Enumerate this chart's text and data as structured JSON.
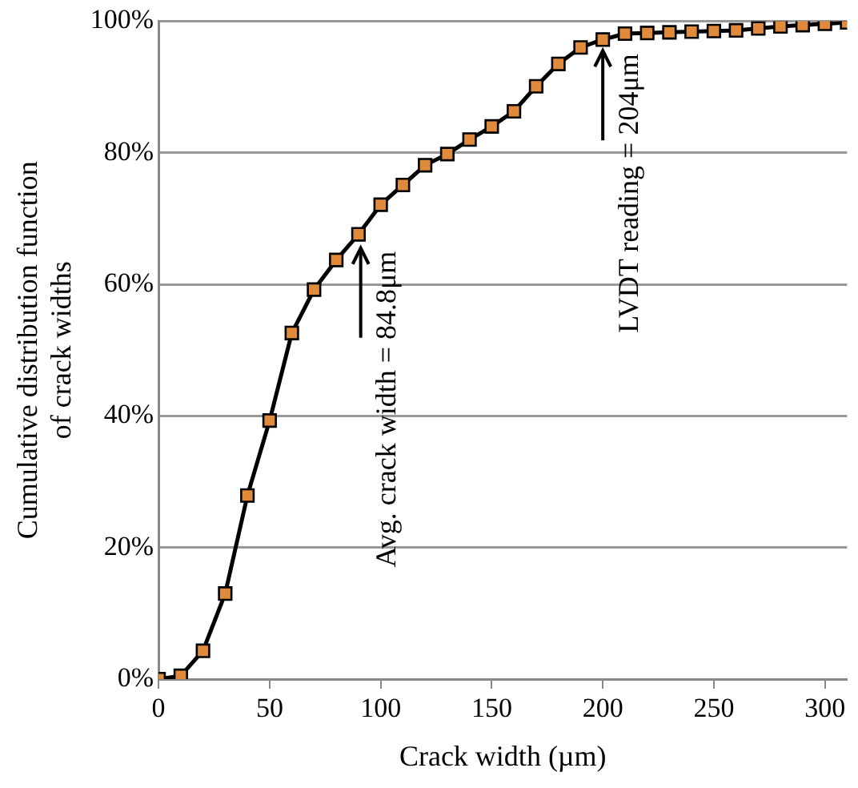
{
  "chart_data": {
    "type": "line",
    "xlabel": "Crack width (µm)",
    "ylabel": "Cumulative distribution function\nof crack widths",
    "x": [
      0,
      10,
      20,
      30,
      40,
      50,
      60,
      70,
      80,
      90,
      100,
      110,
      120,
      130,
      140,
      150,
      160,
      170,
      180,
      190,
      200,
      210,
      220,
      230,
      240,
      250,
      260,
      270,
      280,
      290,
      300,
      310
    ],
    "series": [
      {
        "color": "#e08a3c",
        "values": [
          0,
          0.5,
          4.3,
          13,
          27.9,
          39.3,
          52.6,
          59.2,
          63.7,
          67.6,
          72.1,
          75.1,
          78.1,
          79.8,
          82,
          84,
          86.3,
          90.1,
          93.5,
          96,
          97.2,
          98.1,
          98.2,
          98.3,
          98.4,
          98.5,
          98.6,
          98.9,
          99.2,
          99.4,
          99.6,
          99.8
        ]
      }
    ],
    "xlim": [
      0,
      310
    ],
    "xticks": [
      0,
      50,
      100,
      150,
      200,
      250,
      300
    ],
    "ylim": [
      0,
      100
    ],
    "yticks": [
      {
        "value": 0,
        "label": "0%"
      },
      {
        "value": 20,
        "label": "20%"
      },
      {
        "value": 40,
        "label": "40%"
      },
      {
        "value": 60,
        "label": "60%"
      },
      {
        "value": 80,
        "label": "80%"
      },
      {
        "value": 100,
        "label": "100%"
      }
    ],
    "grid": "y",
    "legend": false,
    "marker": "square",
    "line_style": "solid",
    "annotations": [
      {
        "text": "Avg. crack width = 84.8μm",
        "x": 91,
        "y": 66
      },
      {
        "text": "LVDT reading = 204μm",
        "x": 200,
        "y": 96
      }
    ]
  }
}
